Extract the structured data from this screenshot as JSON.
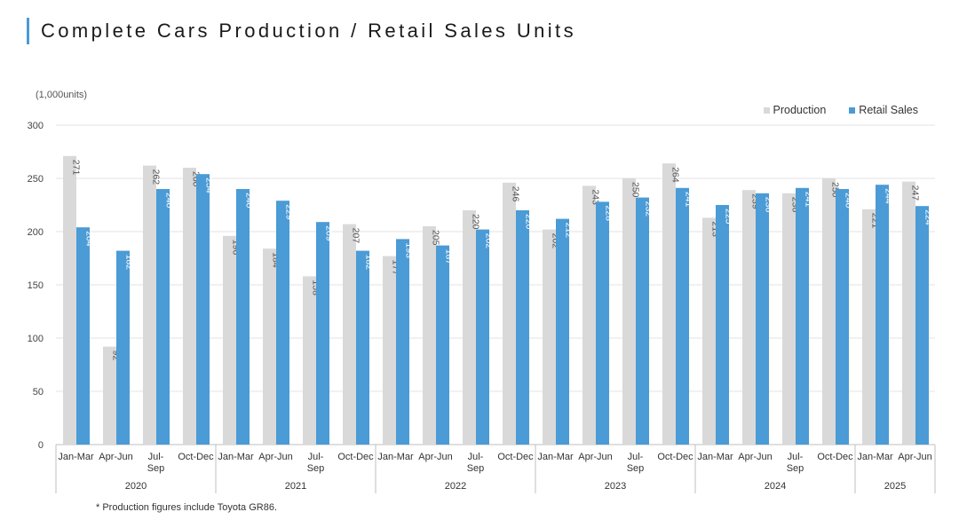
{
  "page": {
    "title": "Complete Cars Production / Retail Sales Units",
    "footnote": "* Production figures include Toyota GR86."
  },
  "colors": {
    "production": "#d9d9d9",
    "retail": "#4a9bd6",
    "accent": "#4a9bd6"
  },
  "chart_data": {
    "type": "bar",
    "unit_label": "(1,000units)",
    "ylim": [
      0,
      300
    ],
    "yticks": [
      0,
      50,
      100,
      150,
      200,
      250,
      300
    ],
    "grid": true,
    "legend_position": "top-right",
    "years": [
      "2020",
      "2021",
      "2022",
      "2023",
      "2024",
      "2025"
    ],
    "categories": [
      {
        "label": [
          "Jan-Mar"
        ],
        "year": "2020"
      },
      {
        "label": [
          "Apr-Jun"
        ],
        "year": "2020"
      },
      {
        "label": [
          "Jul-",
          "Sep"
        ],
        "year": "2020"
      },
      {
        "label": [
          "Oct-Dec"
        ],
        "year": "2020"
      },
      {
        "label": [
          "Jan-Mar"
        ],
        "year": "2021"
      },
      {
        "label": [
          "Apr-Jun"
        ],
        "year": "2021"
      },
      {
        "label": [
          "Jul-",
          "Sep"
        ],
        "year": "2021"
      },
      {
        "label": [
          "Oct-Dec"
        ],
        "year": "2021"
      },
      {
        "label": [
          "Jan-Mar"
        ],
        "year": "2022"
      },
      {
        "label": [
          "Apr-Jun"
        ],
        "year": "2022"
      },
      {
        "label": [
          "Jul-",
          "Sep"
        ],
        "year": "2022"
      },
      {
        "label": [
          "Oct-Dec"
        ],
        "year": "2022"
      },
      {
        "label": [
          "Jan-Mar"
        ],
        "year": "2023"
      },
      {
        "label": [
          "Apr-Jun"
        ],
        "year": "2023"
      },
      {
        "label": [
          "Jul-",
          "Sep"
        ],
        "year": "2023"
      },
      {
        "label": [
          "Oct-Dec"
        ],
        "year": "2023"
      },
      {
        "label": [
          "Jan-Mar"
        ],
        "year": "2024"
      },
      {
        "label": [
          "Apr-Jun"
        ],
        "year": "2024"
      },
      {
        "label": [
          "Jul-",
          "Sep"
        ],
        "year": "2024"
      },
      {
        "label": [
          "Oct-Dec"
        ],
        "year": "2024"
      },
      {
        "label": [
          "Jan-Mar"
        ],
        "year": "2025"
      },
      {
        "label": [
          "Apr-Jun"
        ],
        "year": "2025"
      }
    ],
    "series": [
      {
        "name": "Production",
        "color": "#d9d9d9",
        "values": [
          271,
          92,
          262,
          260,
          196,
          184,
          158,
          207,
          177,
          205,
          220,
          246,
          202,
          243,
          250,
          264,
          213,
          239,
          236,
          250,
          221,
          247
        ]
      },
      {
        "name": "Retail Sales",
        "color": "#4a9bd6",
        "values": [
          204,
          182,
          240,
          254,
          240,
          229,
          209,
          182,
          193,
          187,
          202,
          220,
          212,
          228,
          232,
          241,
          225,
          236,
          241,
          240,
          244,
          224
        ]
      }
    ]
  }
}
